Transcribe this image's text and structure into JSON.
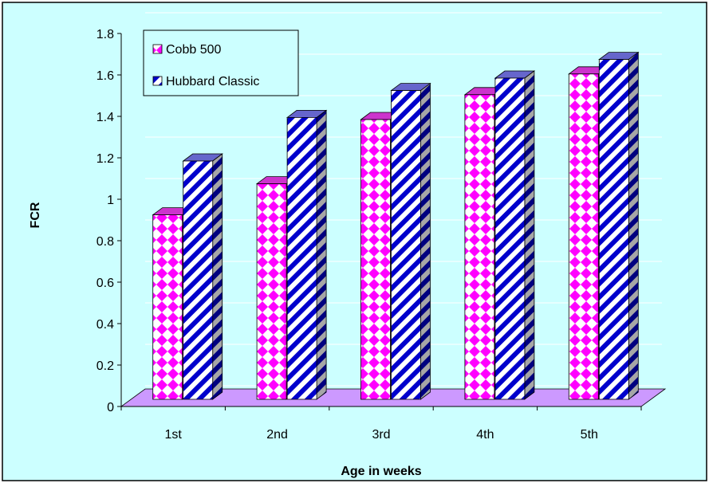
{
  "chart_data": {
    "type": "bar",
    "style": "3d-clustered-column",
    "title": "",
    "xlabel": "Age in weeks",
    "ylabel": "FCR",
    "categories": [
      "1st",
      "2nd",
      "3rd",
      "4th",
      "5th"
    ],
    "ylim": [
      0,
      1.8
    ],
    "yticks": [
      "0",
      "0.2",
      "0.4",
      "0.6",
      "0.8",
      "1",
      "1.2",
      "1.4",
      "1.6",
      "1.8"
    ],
    "grid": true,
    "legend_position": "top-left",
    "series": [
      {
        "name": "Cobb 500",
        "values": [
          0.89,
          1.04,
          1.35,
          1.47,
          1.57
        ],
        "pattern": "pink-diamond",
        "color": "#ff00ff"
      },
      {
        "name": "Hubbard Classic",
        "values": [
          1.15,
          1.36,
          1.49,
          1.55,
          1.64
        ],
        "pattern": "blue-diagonal-stripe",
        "color": "#0000cc"
      }
    ],
    "colors": {
      "background": "#ccffff",
      "floor": "#cc99ff",
      "grid": "#ffffff"
    }
  }
}
